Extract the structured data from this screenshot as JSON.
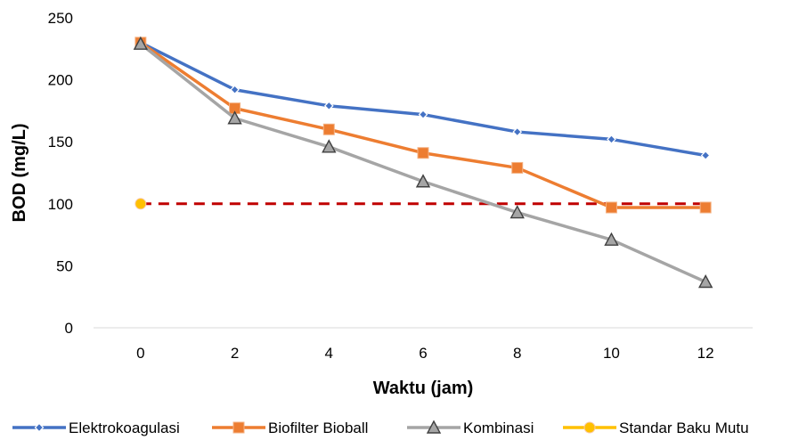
{
  "chart_data": {
    "type": "line",
    "title": "",
    "xlabel": "Waktu (jam)",
    "ylabel": "BOD (mg/L)",
    "x": [
      0,
      2,
      4,
      6,
      8,
      10,
      12
    ],
    "ylim": [
      0,
      250
    ],
    "yticks": [
      0,
      50,
      100,
      150,
      200,
      250
    ],
    "grid": false,
    "legend_position": "bottom",
    "series": [
      {
        "name": "Elektrokoagulasi",
        "color": "#4472C4",
        "marker": "diamond",
        "values": [
          230,
          192,
          179,
          172,
          158,
          152,
          139
        ]
      },
      {
        "name": "Biofilter Bioball",
        "color": "#ED7D31",
        "marker": "square",
        "values": [
          230,
          177,
          160,
          141,
          129,
          97,
          97
        ]
      },
      {
        "name": "Kombinasi",
        "color": "#A5A5A5",
        "marker": "triangle",
        "values": [
          229,
          169,
          146,
          118,
          93,
          71,
          37
        ]
      },
      {
        "name": "Standar Baku Mutu",
        "color": "#FFC000",
        "marker": "circle",
        "values": [
          100,
          null,
          null,
          null,
          null,
          null,
          null
        ]
      }
    ],
    "reference_line": {
      "value": 100,
      "color": "#C00000",
      "style": "dashed"
    }
  }
}
